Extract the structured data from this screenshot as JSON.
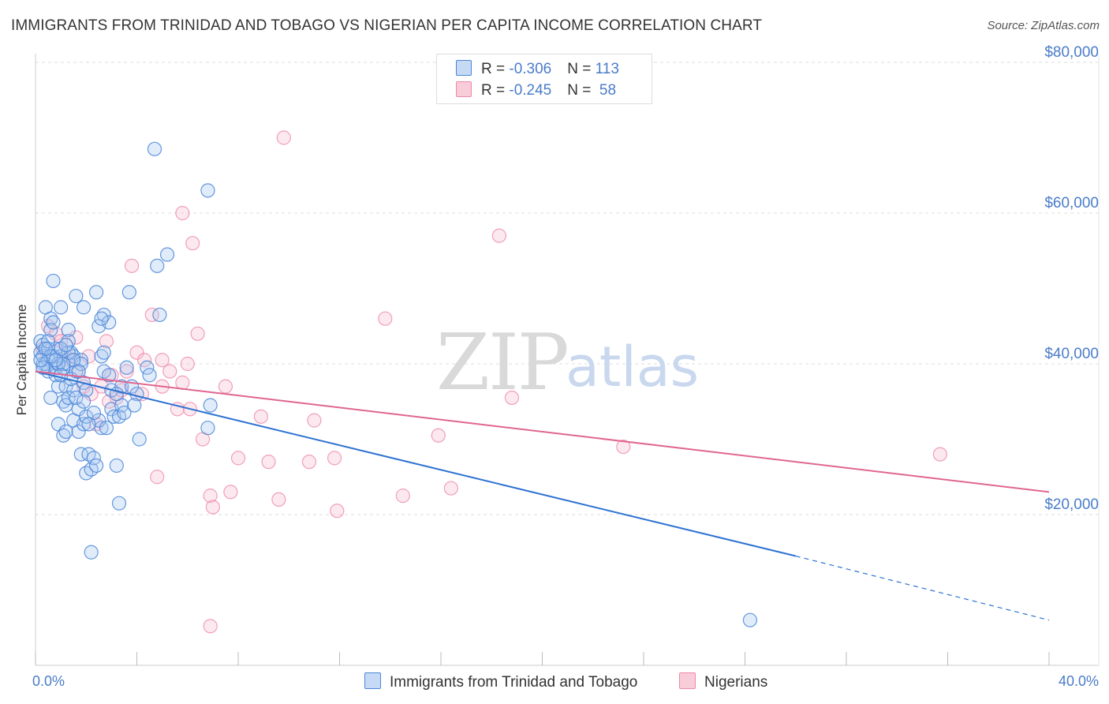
{
  "chart_data": {
    "type": "scatter",
    "title": "IMMIGRANTS FROM TRINIDAD AND TOBAGO VS NIGERIAN PER CAPITA INCOME CORRELATION CHART",
    "source": "Source: ZipAtlas.com",
    "ylabel": "Per Capita Income",
    "xlabel": "",
    "xlim": [
      0,
      40
    ],
    "ylim": [
      0,
      80000
    ],
    "x_unit": "%",
    "x_tick_labels": [
      "0.0%",
      "40.0%"
    ],
    "y_tick_labels": [
      "$20,000",
      "$40,000",
      "$60,000",
      "$80,000"
    ],
    "y_ticks": [
      20000,
      40000,
      60000,
      80000
    ],
    "grid": true,
    "watermark": {
      "zip": "ZIP",
      "atlas": "atlas"
    },
    "colors": {
      "blue": "#4a86d8",
      "pink": "#ee88aa",
      "blue_line": "#2e72d2",
      "pink_line": "#e06690"
    },
    "legend_stats": [
      {
        "r_label": "R = ",
        "r_value": "-0.306",
        "n_label": "N = ",
        "n_value": "113"
      },
      {
        "r_label": "R = ",
        "r_value": "-0.245",
        "n_label": "N = ",
        "n_value": " 58"
      }
    ],
    "series": [
      {
        "name": "Immigrants from Trinidad and Tobago",
        "color": "#4a86d8",
        "trend": {
          "x": [
            0,
            30
          ],
          "y": [
            39000,
            14500
          ],
          "dashed_to": [
            40,
            6000
          ]
        },
        "points": [
          [
            0.2,
            41500
          ],
          [
            0.2,
            43000
          ],
          [
            0.3,
            40000
          ],
          [
            0.3,
            42500
          ],
          [
            0.3,
            41000
          ],
          [
            0.4,
            47500
          ],
          [
            0.5,
            42000
          ],
          [
            0.5,
            40500
          ],
          [
            0.5,
            39000
          ],
          [
            0.6,
            46000
          ],
          [
            0.6,
            44500
          ],
          [
            0.6,
            35500
          ],
          [
            0.7,
            51000
          ],
          [
            0.7,
            45500
          ],
          [
            0.8,
            42000
          ],
          [
            0.8,
            39500
          ],
          [
            0.8,
            38500
          ],
          [
            0.9,
            37000
          ],
          [
            0.9,
            32000
          ],
          [
            0.9,
            40000
          ],
          [
            1.0,
            47500
          ],
          [
            1.0,
            41000
          ],
          [
            1.1,
            39500
          ],
          [
            1.1,
            35000
          ],
          [
            1.1,
            30500
          ],
          [
            1.2,
            37000
          ],
          [
            1.2,
            34500
          ],
          [
            1.2,
            31000
          ],
          [
            1.3,
            44500
          ],
          [
            1.3,
            43000
          ],
          [
            1.3,
            40000
          ],
          [
            1.3,
            35500
          ],
          [
            1.4,
            41500
          ],
          [
            1.5,
            41000
          ],
          [
            1.5,
            36500
          ],
          [
            1.5,
            32500
          ],
          [
            1.6,
            49000
          ],
          [
            1.6,
            39000
          ],
          [
            1.7,
            34000
          ],
          [
            1.7,
            31000
          ],
          [
            1.8,
            40500
          ],
          [
            1.8,
            28000
          ],
          [
            1.9,
            47500
          ],
          [
            1.9,
            37500
          ],
          [
            1.9,
            32000
          ],
          [
            2.0,
            36500
          ],
          [
            2.0,
            33000
          ],
          [
            2.0,
            25500
          ],
          [
            2.1,
            28000
          ],
          [
            2.2,
            26000
          ],
          [
            2.3,
            27500
          ],
          [
            2.2,
            15000
          ],
          [
            2.4,
            49500
          ],
          [
            2.4,
            26500
          ],
          [
            2.5,
            45000
          ],
          [
            2.6,
            41000
          ],
          [
            2.7,
            46500
          ],
          [
            2.7,
            41500
          ],
          [
            2.7,
            39000
          ],
          [
            2.6,
            31500
          ],
          [
            2.9,
            45500
          ],
          [
            3.0,
            36500
          ],
          [
            3.0,
            34000
          ],
          [
            3.1,
            33000
          ],
          [
            3.2,
            26500
          ],
          [
            3.3,
            21500
          ],
          [
            3.3,
            33000
          ],
          [
            3.4,
            34500
          ],
          [
            3.4,
            37000
          ],
          [
            3.6,
            39500
          ],
          [
            3.7,
            49500
          ],
          [
            3.8,
            37000
          ],
          [
            4.0,
            36000
          ],
          [
            4.1,
            30000
          ],
          [
            4.4,
            39500
          ],
          [
            4.5,
            38500
          ],
          [
            4.8,
            53000
          ],
          [
            4.9,
            46500
          ],
          [
            5.2,
            54500
          ],
          [
            4.7,
            68500
          ],
          [
            6.8,
            63000
          ],
          [
            6.8,
            31500
          ],
          [
            6.9,
            34500
          ],
          [
            28.2,
            6000
          ],
          [
            1.3,
            41500
          ],
          [
            0.4,
            40000
          ],
          [
            0.7,
            41000
          ],
          [
            1.0,
            42000
          ],
          [
            2.5,
            32500
          ],
          [
            3.5,
            33500
          ],
          [
            1.6,
            35500
          ],
          [
            2.3,
            33500
          ],
          [
            0.9,
            40000
          ],
          [
            1.4,
            38000
          ],
          [
            1.8,
            40000
          ],
          [
            0.6,
            41000
          ],
          [
            3.9,
            34500
          ],
          [
            2.8,
            31500
          ],
          [
            0.3,
            39500
          ],
          [
            1.2,
            42500
          ],
          [
            1.5,
            40500
          ],
          [
            2.9,
            38500
          ],
          [
            0.5,
            43000
          ],
          [
            1.1,
            40000
          ],
          [
            2.1,
            32000
          ],
          [
            1.7,
            39000
          ],
          [
            0.8,
            40500
          ],
          [
            3.2,
            36000
          ],
          [
            0.4,
            42000
          ],
          [
            1.9,
            35000
          ],
          [
            2.6,
            46000
          ],
          [
            1.0,
            38500
          ],
          [
            0.2,
            40500
          ]
        ]
      },
      {
        "name": "Nigerians",
        "color": "#ee88aa",
        "trend": {
          "x": [
            0,
            40
          ],
          "y": [
            39000,
            23000
          ]
        },
        "points": [
          [
            0.5,
            45000
          ],
          [
            0.8,
            44000
          ],
          [
            1.0,
            43000
          ],
          [
            1.2,
            41000
          ],
          [
            1.4,
            40500
          ],
          [
            1.7,
            39000
          ],
          [
            1.9,
            37000
          ],
          [
            2.1,
            41000
          ],
          [
            2.2,
            36000
          ],
          [
            2.4,
            32000
          ],
          [
            2.6,
            37000
          ],
          [
            2.8,
            43000
          ],
          [
            3.0,
            38500
          ],
          [
            3.2,
            35500
          ],
          [
            3.4,
            36500
          ],
          [
            3.6,
            39000
          ],
          [
            3.8,
            53000
          ],
          [
            4.0,
            41500
          ],
          [
            4.2,
            36000
          ],
          [
            4.3,
            40500
          ],
          [
            4.6,
            46500
          ],
          [
            4.8,
            25000
          ],
          [
            5.0,
            40500
          ],
          [
            5.3,
            39000
          ],
          [
            5.6,
            34000
          ],
          [
            5.8,
            60000
          ],
          [
            5.8,
            37500
          ],
          [
            6.0,
            40000
          ],
          [
            6.1,
            34000
          ],
          [
            6.2,
            56000
          ],
          [
            6.4,
            44000
          ],
          [
            6.6,
            30000
          ],
          [
            6.9,
            22500
          ],
          [
            7.0,
            21000
          ],
          [
            7.5,
            37000
          ],
          [
            7.7,
            23000
          ],
          [
            8.0,
            27500
          ],
          [
            8.9,
            33000
          ],
          [
            9.2,
            27000
          ],
          [
            9.6,
            22000
          ],
          [
            9.8,
            70000
          ],
          [
            10.8,
            27000
          ],
          [
            11.0,
            32500
          ],
          [
            11.8,
            27500
          ],
          [
            11.9,
            20500
          ],
          [
            13.8,
            46000
          ],
          [
            14.5,
            22500
          ],
          [
            15.9,
            30500
          ],
          [
            16.4,
            23500
          ],
          [
            18.3,
            57000
          ],
          [
            18.8,
            35500
          ],
          [
            23.2,
            29000
          ],
          [
            35.7,
            28000
          ],
          [
            6.9,
            5200
          ],
          [
            1.6,
            43500
          ],
          [
            2.9,
            35000
          ],
          [
            0.3,
            42000
          ],
          [
            5.0,
            37000
          ]
        ]
      }
    ]
  },
  "legend": {
    "items": [
      {
        "label": "Immigrants from Trinidad and Tobago"
      },
      {
        "label": "Nigerians"
      }
    ]
  }
}
